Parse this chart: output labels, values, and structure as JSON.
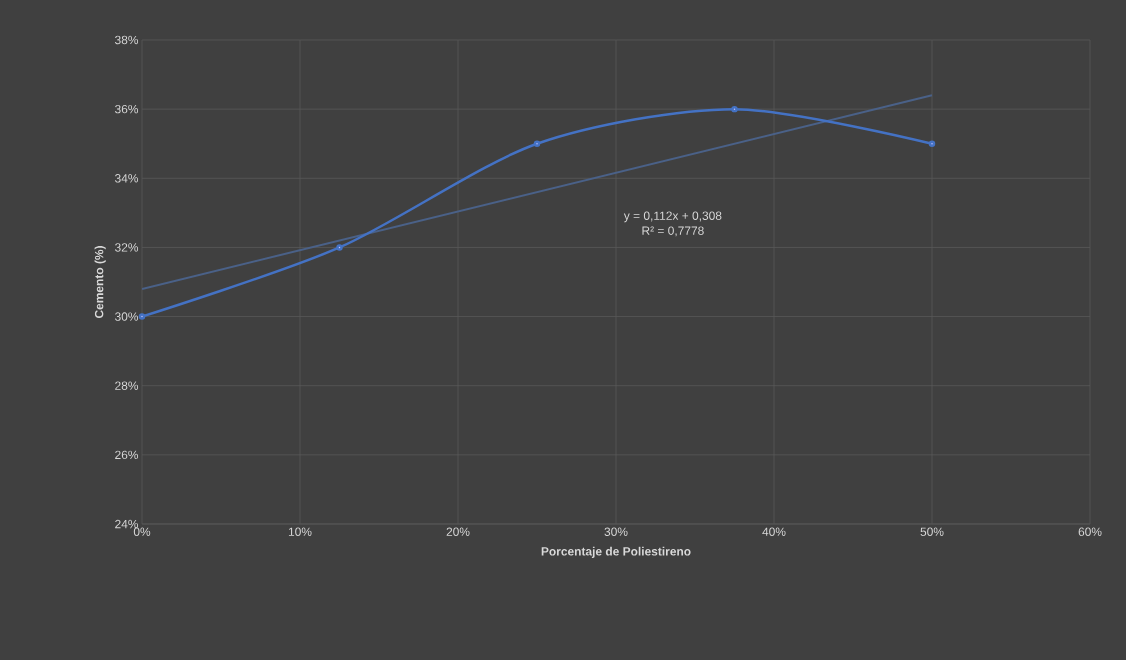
{
  "chart_data": {
    "type": "line",
    "xlabel": "Porcentaje de Poliestireno",
    "ylabel": "Cemento (%)",
    "xlim": [
      0,
      60
    ],
    "xticks": [
      {
        "value": 0,
        "label": "0%"
      },
      {
        "value": 10,
        "label": "10%"
      },
      {
        "value": 20,
        "label": "20%"
      },
      {
        "value": 30,
        "label": "30%"
      },
      {
        "value": 40,
        "label": "40%"
      },
      {
        "value": 50,
        "label": "50%"
      },
      {
        "value": 60,
        "label": "60%"
      }
    ],
    "ylim": [
      24,
      38
    ],
    "yticks": [
      {
        "value": 24,
        "label": "24%"
      },
      {
        "value": 26,
        "label": "26%"
      },
      {
        "value": 28,
        "label": "28%"
      },
      {
        "value": 30,
        "label": "30%"
      },
      {
        "value": 32,
        "label": "32%"
      },
      {
        "value": 34,
        "label": "34%"
      },
      {
        "value": 36,
        "label": "36%"
      },
      {
        "value": 38,
        "label": "38%"
      }
    ],
    "grid": true,
    "series": [
      {
        "x": [
          0,
          12.5,
          25,
          37.5,
          50
        ],
        "values": [
          30,
          32,
          35,
          36,
          35
        ],
        "color": "#4472c4",
        "marker": "circle"
      },
      {
        "x": [
          0,
          50
        ],
        "values": [
          30.8,
          36.4
        ],
        "color": "#4a6188",
        "marker": "none"
      }
    ],
    "annotations": [
      "y = 0,112x + 0,308",
      "R² = 0,7778"
    ]
  }
}
